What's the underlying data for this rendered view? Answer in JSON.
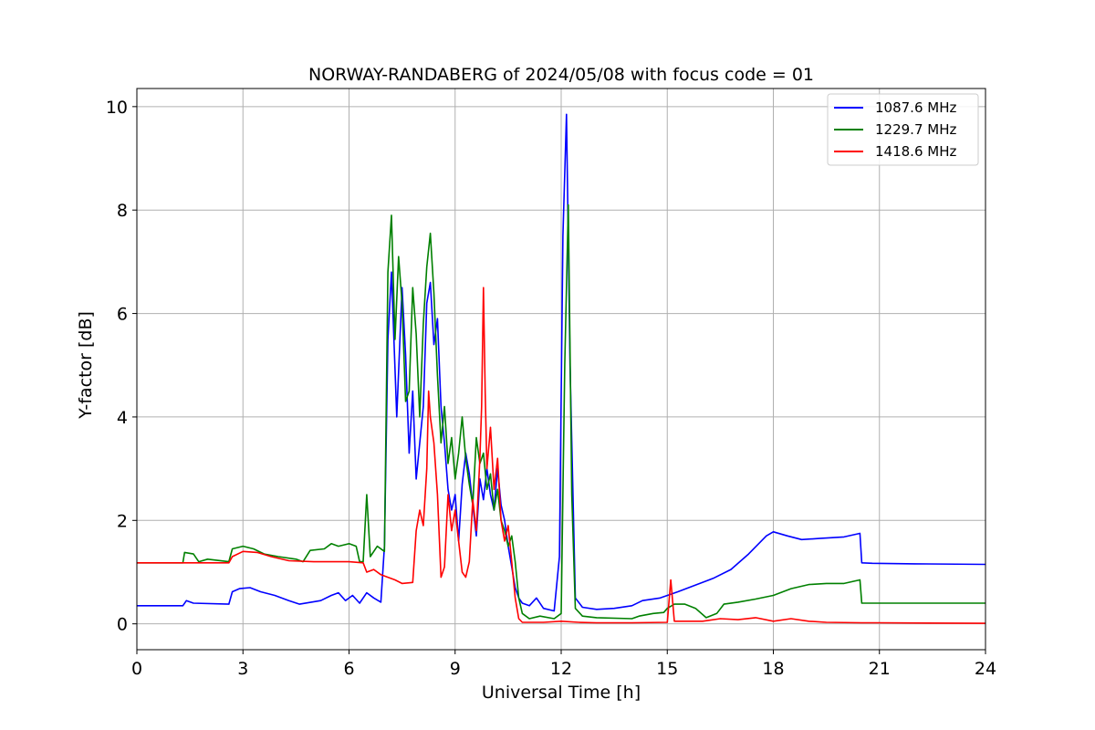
{
  "chart_data": {
    "type": "line",
    "title": "NORWAY-RANDABERG of 2024/05/08 with focus code = 01",
    "xlabel": "Universal Time [h]",
    "ylabel": "Y-factor [dB]",
    "xlim": [
      0,
      24
    ],
    "ylim": [
      -0.5,
      10.35
    ],
    "xticks": [
      "0",
      "3",
      "6",
      "9",
      "12",
      "15",
      "18",
      "21",
      "24"
    ],
    "yticks": [
      "0",
      "2",
      "4",
      "6",
      "8",
      "10"
    ],
    "grid": true,
    "legend_position": "top-right",
    "series": [
      {
        "name": "1087.6 MHz",
        "color": "#0000ff",
        "points": [
          [
            0,
            0.35
          ],
          [
            1.3,
            0.35
          ],
          [
            1.4,
            0.45
          ],
          [
            1.6,
            0.4
          ],
          [
            2.6,
            0.38
          ],
          [
            2.7,
            0.62
          ],
          [
            2.9,
            0.68
          ],
          [
            3.2,
            0.7
          ],
          [
            3.5,
            0.62
          ],
          [
            3.9,
            0.55
          ],
          [
            4.3,
            0.45
          ],
          [
            4.6,
            0.38
          ],
          [
            5.2,
            0.45
          ],
          [
            5.5,
            0.55
          ],
          [
            5.7,
            0.6
          ],
          [
            5.9,
            0.45
          ],
          [
            6.1,
            0.55
          ],
          [
            6.3,
            0.4
          ],
          [
            6.5,
            0.6
          ],
          [
            6.7,
            0.5
          ],
          [
            6.9,
            0.42
          ],
          [
            7.0,
            1.5
          ],
          [
            7.1,
            5.5
          ],
          [
            7.2,
            6.8
          ],
          [
            7.35,
            4.0
          ],
          [
            7.5,
            6.5
          ],
          [
            7.6,
            5.2
          ],
          [
            7.7,
            3.3
          ],
          [
            7.8,
            4.5
          ],
          [
            7.9,
            2.8
          ],
          [
            8.0,
            3.5
          ],
          [
            8.1,
            4.2
          ],
          [
            8.2,
            6.2
          ],
          [
            8.3,
            6.6
          ],
          [
            8.4,
            5.4
          ],
          [
            8.5,
            5.9
          ],
          [
            8.6,
            4.2
          ],
          [
            8.7,
            3.5
          ],
          [
            8.8,
            2.6
          ],
          [
            8.9,
            2.2
          ],
          [
            9.0,
            2.5
          ],
          [
            9.1,
            1.6
          ],
          [
            9.2,
            2.7
          ],
          [
            9.3,
            3.3
          ],
          [
            9.4,
            2.9
          ],
          [
            9.5,
            2.3
          ],
          [
            9.6,
            1.7
          ],
          [
            9.7,
            2.8
          ],
          [
            9.8,
            2.4
          ],
          [
            9.9,
            3.0
          ],
          [
            10.0,
            2.5
          ],
          [
            10.1,
            2.2
          ],
          [
            10.2,
            3.0
          ],
          [
            10.3,
            2.3
          ],
          [
            10.4,
            2.0
          ],
          [
            10.5,
            1.5
          ],
          [
            10.6,
            1.1
          ],
          [
            10.7,
            0.7
          ],
          [
            10.8,
            0.5
          ],
          [
            10.9,
            0.4
          ],
          [
            11.1,
            0.35
          ],
          [
            11.3,
            0.5
          ],
          [
            11.5,
            0.3
          ],
          [
            11.8,
            0.25
          ],
          [
            11.95,
            1.3
          ],
          [
            12.05,
            7.5
          ],
          [
            12.15,
            9.85
          ],
          [
            12.25,
            5.0
          ],
          [
            12.4,
            0.5
          ],
          [
            12.6,
            0.32
          ],
          [
            13.0,
            0.28
          ],
          [
            13.5,
            0.3
          ],
          [
            14.0,
            0.35
          ],
          [
            14.3,
            0.45
          ],
          [
            14.8,
            0.5
          ],
          [
            15.3,
            0.62
          ],
          [
            15.8,
            0.75
          ],
          [
            16.3,
            0.88
          ],
          [
            16.8,
            1.05
          ],
          [
            17.3,
            1.35
          ],
          [
            17.8,
            1.7
          ],
          [
            18.0,
            1.78
          ],
          [
            18.4,
            1.7
          ],
          [
            18.8,
            1.63
          ],
          [
            19.3,
            1.65
          ],
          [
            20.0,
            1.68
          ],
          [
            20.45,
            1.75
          ],
          [
            20.5,
            1.18
          ],
          [
            20.8,
            1.17
          ],
          [
            22.0,
            1.16
          ],
          [
            24,
            1.15
          ]
        ]
      },
      {
        "name": "1229.7 MHz",
        "color": "#008000",
        "points": [
          [
            0,
            1.18
          ],
          [
            1.3,
            1.18
          ],
          [
            1.35,
            1.38
          ],
          [
            1.6,
            1.35
          ],
          [
            1.75,
            1.2
          ],
          [
            2.0,
            1.25
          ],
          [
            2.6,
            1.2
          ],
          [
            2.7,
            1.45
          ],
          [
            3.0,
            1.5
          ],
          [
            3.3,
            1.45
          ],
          [
            3.6,
            1.35
          ],
          [
            4.0,
            1.3
          ],
          [
            4.5,
            1.25
          ],
          [
            4.7,
            1.2
          ],
          [
            4.9,
            1.42
          ],
          [
            5.3,
            1.45
          ],
          [
            5.5,
            1.55
          ],
          [
            5.7,
            1.5
          ],
          [
            6.0,
            1.55
          ],
          [
            6.2,
            1.5
          ],
          [
            6.3,
            1.2
          ],
          [
            6.4,
            1.2
          ],
          [
            6.5,
            2.5
          ],
          [
            6.6,
            1.3
          ],
          [
            6.8,
            1.5
          ],
          [
            7.0,
            1.4
          ],
          [
            7.1,
            6.8
          ],
          [
            7.2,
            7.9
          ],
          [
            7.3,
            5.5
          ],
          [
            7.4,
            7.1
          ],
          [
            7.5,
            6.2
          ],
          [
            7.6,
            4.3
          ],
          [
            7.7,
            4.5
          ],
          [
            7.8,
            6.5
          ],
          [
            7.9,
            5.6
          ],
          [
            8.0,
            4.0
          ],
          [
            8.1,
            5.8
          ],
          [
            8.2,
            6.9
          ],
          [
            8.3,
            7.55
          ],
          [
            8.4,
            6.4
          ],
          [
            8.5,
            4.8
          ],
          [
            8.6,
            3.5
          ],
          [
            8.7,
            4.2
          ],
          [
            8.8,
            3.1
          ],
          [
            8.9,
            3.6
          ],
          [
            9.0,
            2.8
          ],
          [
            9.1,
            3.3
          ],
          [
            9.2,
            4.0
          ],
          [
            9.3,
            3.2
          ],
          [
            9.4,
            2.7
          ],
          [
            9.5,
            2.3
          ],
          [
            9.6,
            3.6
          ],
          [
            9.7,
            3.1
          ],
          [
            9.8,
            3.3
          ],
          [
            9.9,
            2.6
          ],
          [
            10.0,
            2.9
          ],
          [
            10.1,
            2.2
          ],
          [
            10.2,
            2.6
          ],
          [
            10.3,
            2.0
          ],
          [
            10.4,
            1.8
          ],
          [
            10.5,
            1.5
          ],
          [
            10.6,
            1.7
          ],
          [
            10.7,
            1.2
          ],
          [
            10.8,
            0.5
          ],
          [
            10.9,
            0.2
          ],
          [
            11.1,
            0.1
          ],
          [
            11.4,
            0.15
          ],
          [
            11.8,
            0.1
          ],
          [
            12.0,
            0.2
          ],
          [
            12.1,
            5.0
          ],
          [
            12.2,
            8.1
          ],
          [
            12.3,
            2.5
          ],
          [
            12.4,
            0.3
          ],
          [
            12.6,
            0.15
          ],
          [
            13.0,
            0.12
          ],
          [
            14.0,
            0.1
          ],
          [
            14.2,
            0.15
          ],
          [
            14.6,
            0.2
          ],
          [
            14.9,
            0.22
          ],
          [
            15.0,
            0.3
          ],
          [
            15.2,
            0.38
          ],
          [
            15.5,
            0.38
          ],
          [
            15.8,
            0.3
          ],
          [
            16.1,
            0.12
          ],
          [
            16.4,
            0.2
          ],
          [
            16.6,
            0.38
          ],
          [
            17.0,
            0.42
          ],
          [
            17.5,
            0.48
          ],
          [
            18.0,
            0.55
          ],
          [
            18.5,
            0.68
          ],
          [
            19.0,
            0.76
          ],
          [
            19.5,
            0.78
          ],
          [
            20.0,
            0.78
          ],
          [
            20.45,
            0.85
          ],
          [
            20.5,
            0.4
          ],
          [
            21.0,
            0.4
          ],
          [
            22.5,
            0.4
          ],
          [
            24,
            0.4
          ]
        ]
      },
      {
        "name": "1418.6 MHz",
        "color": "#ff0000",
        "points": [
          [
            0,
            1.18
          ],
          [
            2.6,
            1.18
          ],
          [
            2.7,
            1.3
          ],
          [
            3.0,
            1.4
          ],
          [
            3.4,
            1.38
          ],
          [
            3.8,
            1.3
          ],
          [
            4.3,
            1.22
          ],
          [
            5.0,
            1.2
          ],
          [
            6.0,
            1.2
          ],
          [
            6.4,
            1.18
          ],
          [
            6.5,
            1.0
          ],
          [
            6.7,
            1.05
          ],
          [
            6.9,
            0.95
          ],
          [
            7.1,
            0.9
          ],
          [
            7.3,
            0.85
          ],
          [
            7.5,
            0.78
          ],
          [
            7.8,
            0.8
          ],
          [
            7.9,
            1.8
          ],
          [
            8.0,
            2.2
          ],
          [
            8.1,
            1.9
          ],
          [
            8.2,
            3.0
          ],
          [
            8.25,
            4.5
          ],
          [
            8.3,
            4.0
          ],
          [
            8.4,
            3.5
          ],
          [
            8.5,
            2.5
          ],
          [
            8.6,
            0.9
          ],
          [
            8.7,
            1.1
          ],
          [
            8.8,
            2.5
          ],
          [
            8.9,
            1.8
          ],
          [
            9.0,
            2.2
          ],
          [
            9.1,
            1.6
          ],
          [
            9.2,
            1.0
          ],
          [
            9.3,
            0.9
          ],
          [
            9.4,
            1.2
          ],
          [
            9.5,
            2.4
          ],
          [
            9.6,
            1.8
          ],
          [
            9.7,
            3.2
          ],
          [
            9.75,
            4.2
          ],
          [
            9.8,
            6.5
          ],
          [
            9.85,
            4.5
          ],
          [
            9.9,
            3.0
          ],
          [
            10.0,
            3.8
          ],
          [
            10.1,
            2.6
          ],
          [
            10.2,
            3.2
          ],
          [
            10.3,
            2.0
          ],
          [
            10.4,
            1.6
          ],
          [
            10.5,
            1.9
          ],
          [
            10.6,
            1.2
          ],
          [
            10.7,
            0.5
          ],
          [
            10.8,
            0.1
          ],
          [
            10.9,
            0.03
          ],
          [
            11.5,
            0.03
          ],
          [
            12.0,
            0.05
          ],
          [
            12.5,
            0.03
          ],
          [
            13.0,
            0.02
          ],
          [
            14.0,
            0.02
          ],
          [
            15.0,
            0.03
          ],
          [
            15.1,
            0.85
          ],
          [
            15.2,
            0.05
          ],
          [
            16.0,
            0.05
          ],
          [
            16.5,
            0.1
          ],
          [
            17.0,
            0.08
          ],
          [
            17.5,
            0.12
          ],
          [
            18.0,
            0.05
          ],
          [
            18.5,
            0.1
          ],
          [
            19.0,
            0.05
          ],
          [
            19.5,
            0.03
          ],
          [
            20.5,
            0.02
          ],
          [
            21.0,
            0.02
          ],
          [
            24,
            0.01
          ]
        ]
      }
    ]
  }
}
